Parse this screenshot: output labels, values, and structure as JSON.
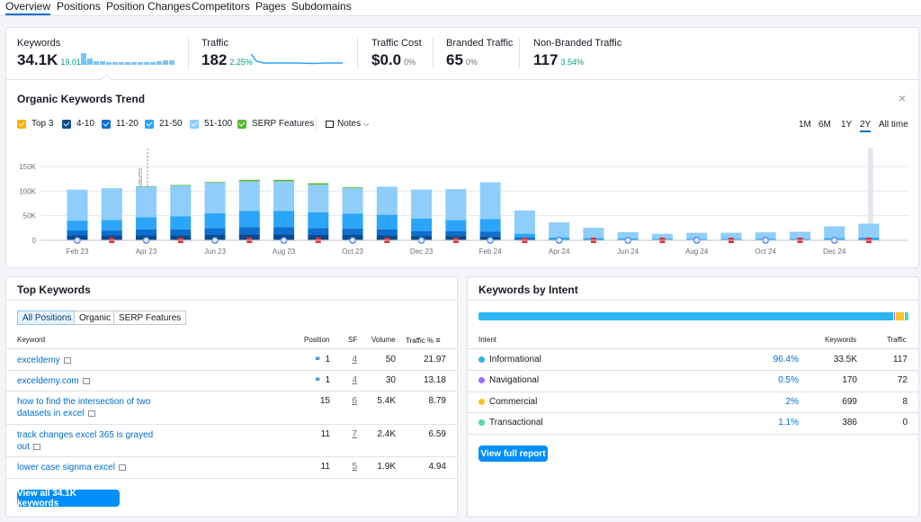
{
  "tabs": [
    "Overview",
    "Positions",
    "Position Changes",
    "Competitors",
    "Pages",
    "Subdomains"
  ],
  "metrics": [
    {
      "label": "Keywords",
      "value": "34.1K",
      "pct": "19.01%",
      "pct_color": "green"
    },
    {
      "label": "Traffic",
      "value": "182",
      "pct": "2.25%",
      "pct_color": "green"
    },
    {
      "label": "Traffic Cost",
      "value": "$0.0",
      "pct": "0%",
      "pct_color": "grey"
    },
    {
      "label": "Branded Traffic",
      "value": "65",
      "pct": "0%",
      "pct_color": "grey"
    },
    {
      "label": "Non-Branded Traffic",
      "value": "117",
      "pct": "3.54%",
      "pct_color": "green"
    }
  ],
  "trend": {
    "title": "Organic Keywords Trend",
    "close_label": "×",
    "legend": [
      {
        "label": "Top 3",
        "color": "#ffb000"
      },
      {
        "label": "4-10",
        "color": "#0a4a8c"
      },
      {
        "label": "11-20",
        "color": "#0d6fd0"
      },
      {
        "label": "21-50",
        "color": "#2ba5f7"
      },
      {
        "label": "51-100",
        "color": "#8fcdfb"
      },
      {
        "label": "SERP Features",
        "color": "#59b82f"
      }
    ],
    "notes_label": "Notes",
    "ranges": [
      "1M",
      "6M",
      "1Y",
      "2Y",
      "All time"
    ],
    "active_range": "2Y",
    "annotation": "SERP Features"
  },
  "chart_data": {
    "type": "bar",
    "stacked": true,
    "ylim": [
      0,
      150000
    ],
    "yticks": [
      "150K",
      "100K",
      "50K",
      "0"
    ],
    "xticks": [
      "Feb 23",
      "Apr 23",
      "Jun 23",
      "Aug 23",
      "Oct 23",
      "Dec 23",
      "Feb 24",
      "Apr 24",
      "Jun 24",
      "Aug 24",
      "Oct 24",
      "Dec 24"
    ],
    "categories": [
      "Feb 23",
      "Mar 23",
      "Apr 23",
      "May 23",
      "Jun 23",
      "Jul 23",
      "Aug 23",
      "Sep 23",
      "Oct 23",
      "Nov 23",
      "Dec 23",
      "Jan 24",
      "Feb 24",
      "Mar 24",
      "Apr 24",
      "May 24",
      "Jun 24",
      "Jul 24",
      "Aug 24",
      "Sep 24",
      "Oct 24",
      "Nov 24",
      "Dec 24",
      "Jan 25"
    ],
    "series": [
      {
        "name": "Top 3",
        "color": "#ffb000",
        "values": [
          1000,
          1000,
          1000,
          1000,
          1000,
          1000,
          1000,
          1000,
          1000,
          1000,
          1000,
          1000,
          1000,
          500,
          300,
          200,
          200,
          200,
          200,
          200,
          200,
          200,
          200,
          200
        ]
      },
      {
        "name": "4-10",
        "color": "#0a4a8c",
        "values": [
          9000,
          9000,
          9000,
          9000,
          10000,
          11000,
          11000,
          10000,
          10000,
          9000,
          8000,
          8000,
          7000,
          2000,
          1000,
          800,
          600,
          500,
          500,
          500,
          500,
          500,
          500,
          600
        ]
      },
      {
        "name": "11-20",
        "color": "#0d6fd0",
        "values": [
          10000,
          10000,
          12000,
          12000,
          14000,
          15000,
          15000,
          14000,
          13000,
          12000,
          10000,
          10000,
          10000,
          3000,
          1200,
          1000,
          800,
          700,
          700,
          700,
          700,
          700,
          700,
          1000
        ]
      },
      {
        "name": "21-50",
        "color": "#2ba5f7",
        "values": [
          20000,
          21000,
          25000,
          27000,
          30000,
          33000,
          33000,
          32000,
          30000,
          30000,
          25000,
          22000,
          25000,
          8000,
          3000,
          2500,
          2000,
          1800,
          1800,
          1900,
          1900,
          1900,
          3000,
          4000
        ]
      },
      {
        "name": "51-100",
        "color": "#8fcdfb",
        "values": [
          63000,
          65000,
          62000,
          62000,
          62000,
          60000,
          60000,
          56000,
          52000,
          57000,
          59000,
          63000,
          75000,
          47000,
          31000,
          21000,
          13000,
          10000,
          12000,
          12000,
          13000,
          14000,
          24000,
          28000
        ]
      },
      {
        "name": "SERP Features",
        "color": "#59b82f",
        "values": [
          0,
          0,
          1000,
          1500,
          1500,
          3000,
          3000,
          3000,
          1500,
          0,
          0,
          0,
          0,
          0,
          0,
          0,
          0,
          0,
          0,
          0,
          0,
          0,
          0,
          0
        ]
      }
    ]
  },
  "top_keywords": {
    "title": "Top Keywords",
    "filters": [
      "All Positions",
      "Organic",
      "SERP Features"
    ],
    "headers": {
      "keyword": "Keyword",
      "position": "Position",
      "sf": "SF",
      "volume": "Volume",
      "traffic": "Traffic %"
    },
    "rows": [
      {
        "keyword": "exceldemy",
        "position": "1",
        "sf": "4",
        "volume": "50",
        "traffic": "21.97"
      },
      {
        "keyword": "exceldemy.com",
        "position": "1",
        "sf": "4",
        "volume": "30",
        "traffic": "13.18"
      },
      {
        "keyword": "how to find the intersection of two datasets in excel",
        "position": "15",
        "sf": "6",
        "volume": "5.4K",
        "traffic": "8.79"
      },
      {
        "keyword": "track changes excel 365 is grayed out",
        "position": "11",
        "sf": "7",
        "volume": "2.4K",
        "traffic": "6.59"
      },
      {
        "keyword": "lower case signma excel",
        "position": "11",
        "sf": "5",
        "volume": "1.9K",
        "traffic": "4.94"
      }
    ],
    "view_all": "View all 34.1K keywords"
  },
  "intent": {
    "title": "Keywords by Intent",
    "headers": {
      "intent": "Intent",
      "keywords": "Keywords",
      "traffic": "Traffic"
    },
    "rows": [
      {
        "name": "Informational",
        "color": "#2bb7f3",
        "pct": "96.4%",
        "share": 96.4,
        "keywords": "33.5K",
        "traffic": "117"
      },
      {
        "name": "Navigational",
        "color": "#9c6cff",
        "pct": "0.5%",
        "share": 0.5,
        "keywords": "170",
        "traffic": "72"
      },
      {
        "name": "Commercial",
        "color": "#ffc22b",
        "pct": "2%",
        "share": 2,
        "keywords": "699",
        "traffic": "8"
      },
      {
        "name": "Transactional",
        "color": "#51d7ac",
        "pct": "1.1%",
        "share": 1.1,
        "keywords": "386",
        "traffic": "0"
      }
    ],
    "full_report": "View full report"
  }
}
